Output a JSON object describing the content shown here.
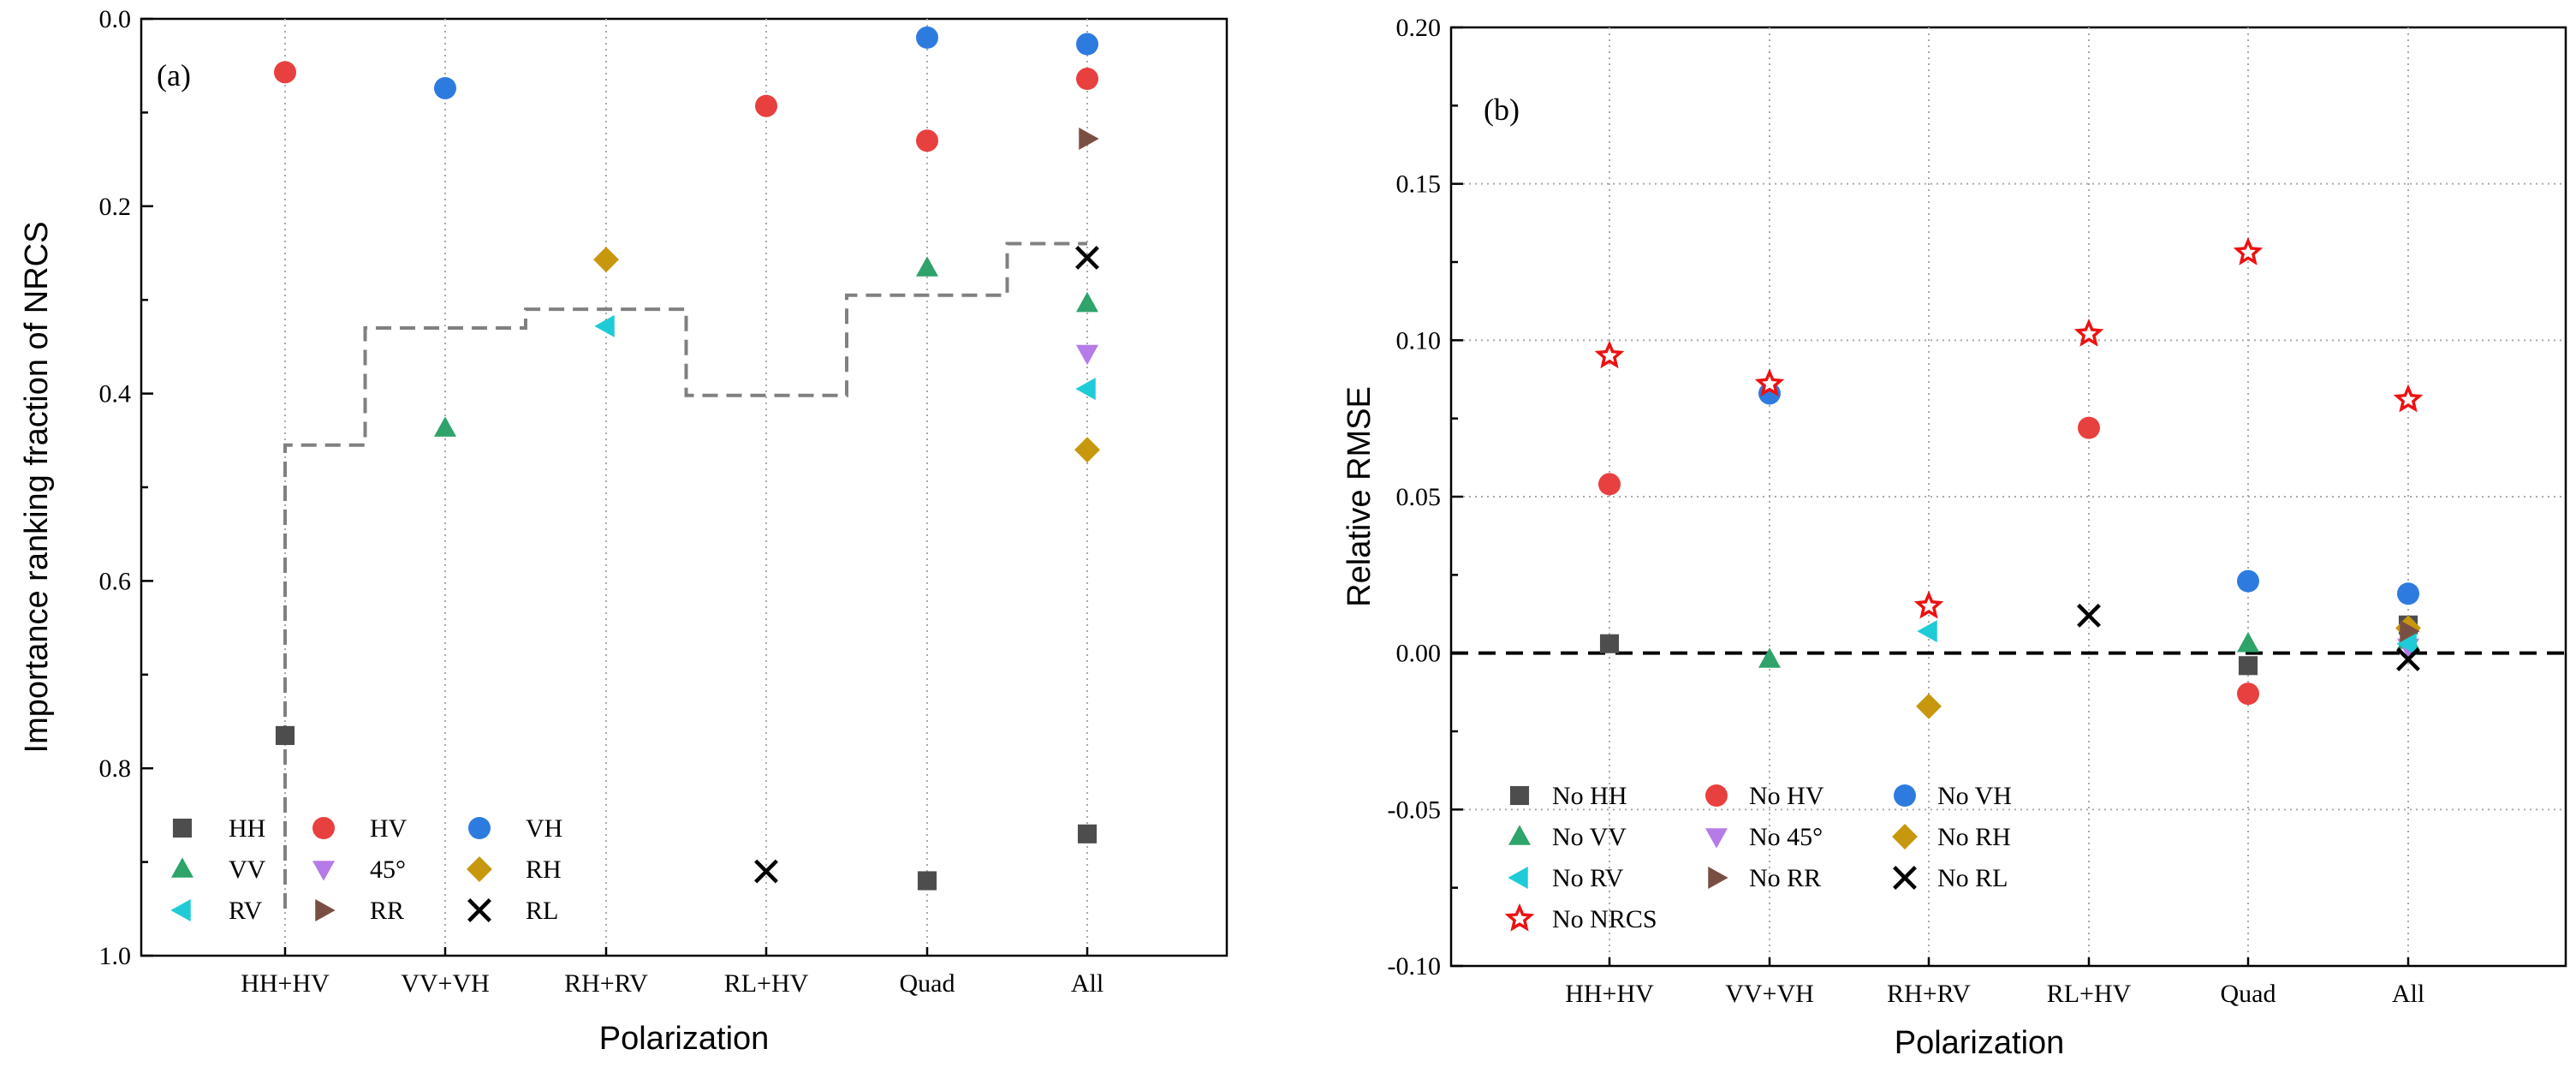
{
  "chart_data": [
    {
      "id": "a",
      "type": "scatter",
      "panel_label": "(a)",
      "xlabel": "Polarization",
      "ylabel": "Importance ranking fraction of NRCS",
      "categories": [
        "HH+HV",
        "VV+VH",
        "RH+RV",
        "RL+HV",
        "Quad",
        "All"
      ],
      "ylim": [
        0.0,
        1.0
      ],
      "y_inverted": true,
      "y_ticks": [
        0.0,
        0.2,
        0.4,
        0.6,
        0.8,
        1.0
      ],
      "y_tick_labels": [
        "0.0",
        "0.2",
        "0.4",
        "0.6",
        "0.8",
        "1.0"
      ],
      "grid": "vertical dotted at categories",
      "legend_position": "bottom-left",
      "series": [
        {
          "name": "HH",
          "marker": "square",
          "color": "#4d4d4d",
          "values": [
            0.765,
            null,
            null,
            null,
            0.92,
            0.87
          ]
        },
        {
          "name": "HV",
          "marker": "circle",
          "color": "#e8403f",
          "values": [
            0.057,
            null,
            null,
            0.093,
            0.13,
            0.064
          ]
        },
        {
          "name": "VH",
          "marker": "circle",
          "color": "#2e7be0",
          "values": [
            null,
            0.074,
            null,
            null,
            0.02,
            0.027
          ]
        },
        {
          "name": "VV",
          "marker": "triangle-up",
          "color": "#2ea36a",
          "values": [
            null,
            0.437,
            null,
            null,
            0.266,
            0.304
          ]
        },
        {
          "name": "45°",
          "marker": "triangle-down",
          "color": "#b57be6",
          "values": [
            null,
            null,
            null,
            null,
            null,
            0.357
          ]
        },
        {
          "name": "RH",
          "marker": "diamond",
          "color": "#c7980d",
          "values": [
            null,
            null,
            0.257,
            null,
            null,
            0.46
          ]
        },
        {
          "name": "RV",
          "marker": "triangle-left",
          "color": "#1fcbd6",
          "values": [
            null,
            null,
            0.328,
            null,
            null,
            0.395
          ]
        },
        {
          "name": "RR",
          "marker": "triangle-right",
          "color": "#7a4f43",
          "values": [
            null,
            null,
            null,
            null,
            null,
            0.128
          ]
        },
        {
          "name": "RL",
          "marker": "x",
          "color": "#000000",
          "values": [
            null,
            null,
            null,
            0.91,
            null,
            0.255
          ]
        }
      ],
      "step_line": {
        "style": "dashed",
        "color": "#808080",
        "values": [
          0.455,
          0.33,
          0.31,
          0.402,
          0.295,
          0.24
        ]
      }
    },
    {
      "id": "b",
      "type": "scatter",
      "panel_label": "(b)",
      "xlabel": "Polarization",
      "ylabel": "Relative RMSE",
      "categories": [
        "HH+HV",
        "VV+VH",
        "RH+RV",
        "RL+HV",
        "Quad",
        "All"
      ],
      "ylim": [
        -0.1,
        0.2
      ],
      "y_ticks": [
        -0.1,
        -0.05,
        0.0,
        0.05,
        0.1,
        0.15,
        0.2
      ],
      "y_tick_labels": [
        "-0.10",
        "-0.05",
        "0.00",
        "0.05",
        "0.10",
        "0.15",
        "0.20"
      ],
      "grid": "dotted at ticks and categories",
      "reference_line": {
        "y": 0.0,
        "style": "dashed",
        "color": "#000000"
      },
      "legend_position": "bottom-left",
      "series": [
        {
          "name": "No HH",
          "marker": "square",
          "color": "#4d4d4d",
          "values": [
            0.003,
            null,
            null,
            null,
            -0.004,
            0.009
          ]
        },
        {
          "name": "No HV",
          "marker": "circle",
          "color": "#e8403f",
          "values": [
            0.054,
            null,
            null,
            0.072,
            -0.013,
            null
          ]
        },
        {
          "name": "No VH",
          "marker": "circle",
          "color": "#2e7be0",
          "values": [
            null,
            0.083,
            null,
            null,
            0.023,
            0.019
          ]
        },
        {
          "name": "No VV",
          "marker": "triangle-up",
          "color": "#2ea36a",
          "values": [
            null,
            -0.002,
            null,
            null,
            0.003,
            0.004
          ]
        },
        {
          "name": "No 45°",
          "marker": "triangle-down",
          "color": "#b57be6",
          "values": [
            null,
            null,
            null,
            null,
            null,
            0.002
          ]
        },
        {
          "name": "No RH",
          "marker": "diamond",
          "color": "#c7980d",
          "values": [
            null,
            null,
            -0.017,
            null,
            null,
            0.008
          ]
        },
        {
          "name": "No RV",
          "marker": "triangle-left",
          "color": "#1fcbd6",
          "values": [
            null,
            null,
            0.007,
            null,
            null,
            0.003
          ]
        },
        {
          "name": "No RR",
          "marker": "triangle-right",
          "color": "#7a4f43",
          "values": [
            null,
            null,
            null,
            null,
            null,
            0.007
          ]
        },
        {
          "name": "No RL",
          "marker": "x",
          "color": "#000000",
          "values": [
            null,
            null,
            null,
            0.012,
            null,
            -0.002
          ]
        },
        {
          "name": "No NRCS",
          "marker": "star",
          "color": "#ee1111",
          "values": [
            0.095,
            0.086,
            0.015,
            0.102,
            0.128,
            0.081
          ]
        }
      ]
    }
  ]
}
